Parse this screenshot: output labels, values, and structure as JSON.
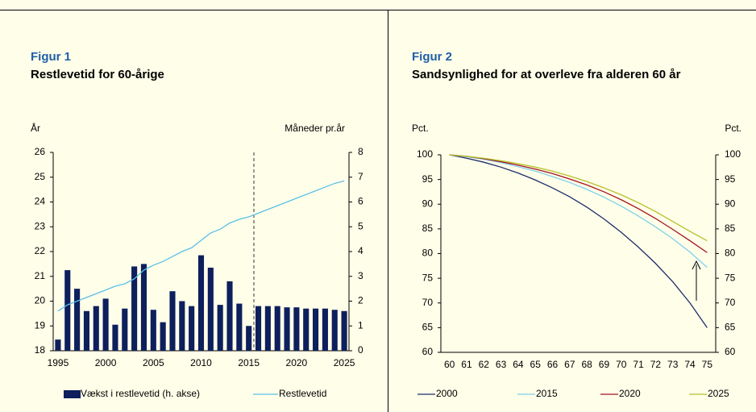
{
  "chart_data": [
    {
      "type": "combo",
      "figure_label": "Figur 1",
      "title": "Restlevetid for 60-årige",
      "ylabel": "År",
      "y2label": "Måneder pr.år",
      "categories": [
        1995,
        null,
        null,
        null,
        null,
        2000,
        null,
        null,
        null,
        null,
        2005,
        null,
        null,
        null,
        null,
        2010,
        null,
        null,
        null,
        null,
        2015,
        null,
        null,
        null,
        null,
        2020,
        null,
        null,
        null,
        null,
        2025
      ],
      "series": [
        {
          "name": "Vækst i restlevetid (h. akse)",
          "type": "bar",
          "axis": "y2",
          "color": "#0d1f5c",
          "values": [
            0.45,
            3.25,
            2.5,
            1.6,
            1.8,
            2.1,
            1.05,
            1.7,
            3.4,
            3.5,
            1.65,
            1.15,
            2.4,
            2.0,
            1.8,
            3.85,
            3.35,
            1.85,
            2.8,
            1.9,
            1.0,
            1.8,
            1.8,
            1.8,
            1.75,
            1.75,
            1.7,
            1.7,
            1.7,
            1.65,
            1.6
          ]
        },
        {
          "name": "Restlevetid",
          "type": "line",
          "color": "#5bc0e8",
          "values": [
            19.6,
            19.85,
            20.0,
            20.15,
            20.3,
            20.45,
            20.6,
            20.7,
            20.9,
            21.25,
            21.45,
            21.6,
            21.8,
            22.0,
            22.15,
            22.45,
            22.75,
            22.9,
            23.15,
            23.3,
            23.4,
            23.55,
            23.7,
            23.85,
            24.0,
            24.15,
            24.3,
            24.45,
            24.6,
            24.75,
            24.85
          ]
        }
      ],
      "ylim": [
        18,
        26
      ],
      "yticks": [
        18,
        19,
        20,
        21,
        22,
        23,
        24,
        25,
        26
      ],
      "y2lim": [
        0,
        8
      ],
      "y2ticks": [
        0,
        1,
        2,
        3,
        4,
        5,
        6,
        7,
        8
      ]
    },
    {
      "type": "line",
      "figure_label": "Figur 2",
      "title": "Sandsynlighed for at overleve fra alderen 60 år",
      "ylabel": "Pct.",
      "y2label": "Pct.",
      "categories": [
        60,
        61,
        62,
        63,
        64,
        65,
        66,
        67,
        68,
        69,
        70,
        71,
        72,
        73,
        74,
        75
      ],
      "series": [
        {
          "name": "2000",
          "color": "#1f2d6b",
          "values": [
            100,
            99.3,
            98.5,
            97.5,
            96.3,
            94.9,
            93.3,
            91.5,
            89.4,
            87.0,
            84.3,
            81.3,
            78.0,
            74.3,
            70.0,
            65.0
          ]
        },
        {
          "name": "2015",
          "color": "#7fd0ea",
          "values": [
            100,
            99.6,
            99.1,
            98.4,
            97.6,
            96.7,
            95.6,
            94.4,
            93.0,
            91.4,
            89.6,
            87.6,
            85.4,
            83.0,
            80.3,
            77.2
          ]
        },
        {
          "name": "2020",
          "color": "#a3121e",
          "values": [
            100,
            99.7,
            99.2,
            98.6,
            97.9,
            97.1,
            96.2,
            95.1,
            93.9,
            92.5,
            90.9,
            89.1,
            87.1,
            84.9,
            82.6,
            80.2
          ]
        },
        {
          "name": "2025",
          "color": "#b5c12a",
          "values": [
            100,
            99.7,
            99.3,
            98.8,
            98.2,
            97.5,
            96.7,
            95.7,
            94.6,
            93.3,
            91.9,
            90.3,
            88.5,
            86.5,
            84.5,
            82.6
          ]
        }
      ],
      "ylim": [
        60,
        100
      ],
      "yticks": [
        60,
        65,
        70,
        75,
        80,
        85,
        90,
        95,
        100
      ],
      "y2lim": [
        60,
        100
      ],
      "y2ticks": [
        60,
        65,
        70,
        75,
        80,
        85,
        90,
        95,
        100
      ]
    }
  ]
}
